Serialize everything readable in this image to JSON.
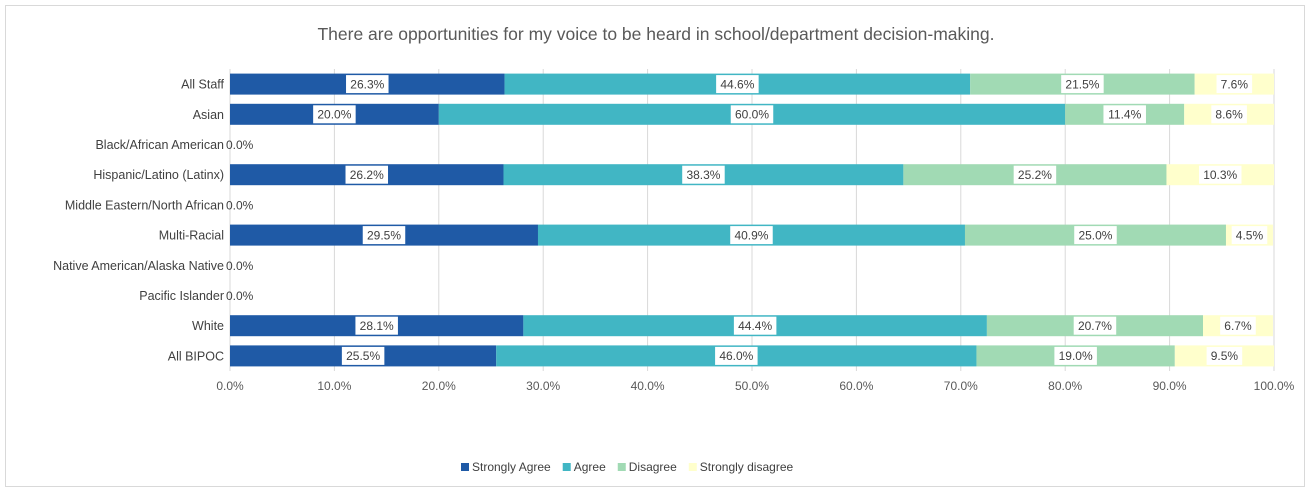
{
  "chart_data": {
    "type": "bar",
    "orientation": "horizontal",
    "stacked": true,
    "title": "There are opportunities for my voice to be heard in school/department decision-making.",
    "categories": [
      "All Staff",
      "Asian",
      "Black/African American",
      "Hispanic/Latino (Latinx)",
      "Middle Eastern/North African",
      "Multi-Racial",
      "Native American/Alaska Native",
      "Pacific Islander",
      "White",
      "All BIPOC"
    ],
    "series": [
      {
        "name": "Strongly Agree",
        "color": "#1F5AA6",
        "values": [
          26.3,
          20.0,
          0.0,
          26.2,
          0.0,
          29.5,
          0.0,
          0.0,
          28.1,
          25.5
        ],
        "labels": [
          "26.3%",
          "20.0%",
          "0.0%",
          "26.2%",
          "0.0%",
          "29.5%",
          "0.0%",
          "0.0%",
          "28.1%",
          "25.5%"
        ]
      },
      {
        "name": "Agree",
        "color": "#41B6C4",
        "values": [
          44.6,
          60.0,
          0.0,
          38.3,
          0.0,
          40.9,
          0.0,
          0.0,
          44.4,
          46.0
        ],
        "labels": [
          "44.6%",
          "60.0%",
          "",
          "38.3%",
          "",
          "40.9%",
          "",
          "",
          "44.4%",
          "46.0%"
        ]
      },
      {
        "name": "Disagree",
        "color": "#A1DAB4",
        "values": [
          21.5,
          11.4,
          0.0,
          25.2,
          0.0,
          25.0,
          0.0,
          0.0,
          20.7,
          19.0
        ],
        "labels": [
          "21.5%",
          "11.4%",
          "",
          "25.2%",
          "",
          "25.0%",
          "",
          "",
          "20.7%",
          "19.0%"
        ]
      },
      {
        "name": "Strongly disagree",
        "color": "#FFFFCC",
        "values": [
          7.6,
          8.6,
          0.0,
          10.3,
          0.0,
          4.5,
          0.0,
          0.0,
          6.7,
          9.5
        ],
        "labels": [
          "7.6%",
          "8.6%",
          "",
          "10.3%",
          "",
          "4.5%",
          "",
          "",
          "6.7%",
          "9.5%"
        ]
      }
    ],
    "xlim": [
      0,
      100
    ],
    "x_ticks": [
      0,
      10,
      20,
      30,
      40,
      50,
      60,
      70,
      80,
      90,
      100
    ],
    "x_tick_labels": [
      "0.0%",
      "10.0%",
      "20.0%",
      "30.0%",
      "40.0%",
      "50.0%",
      "60.0%",
      "70.0%",
      "80.0%",
      "90.0%",
      "100.0%"
    ],
    "grid": true,
    "legend_position": "bottom"
  }
}
